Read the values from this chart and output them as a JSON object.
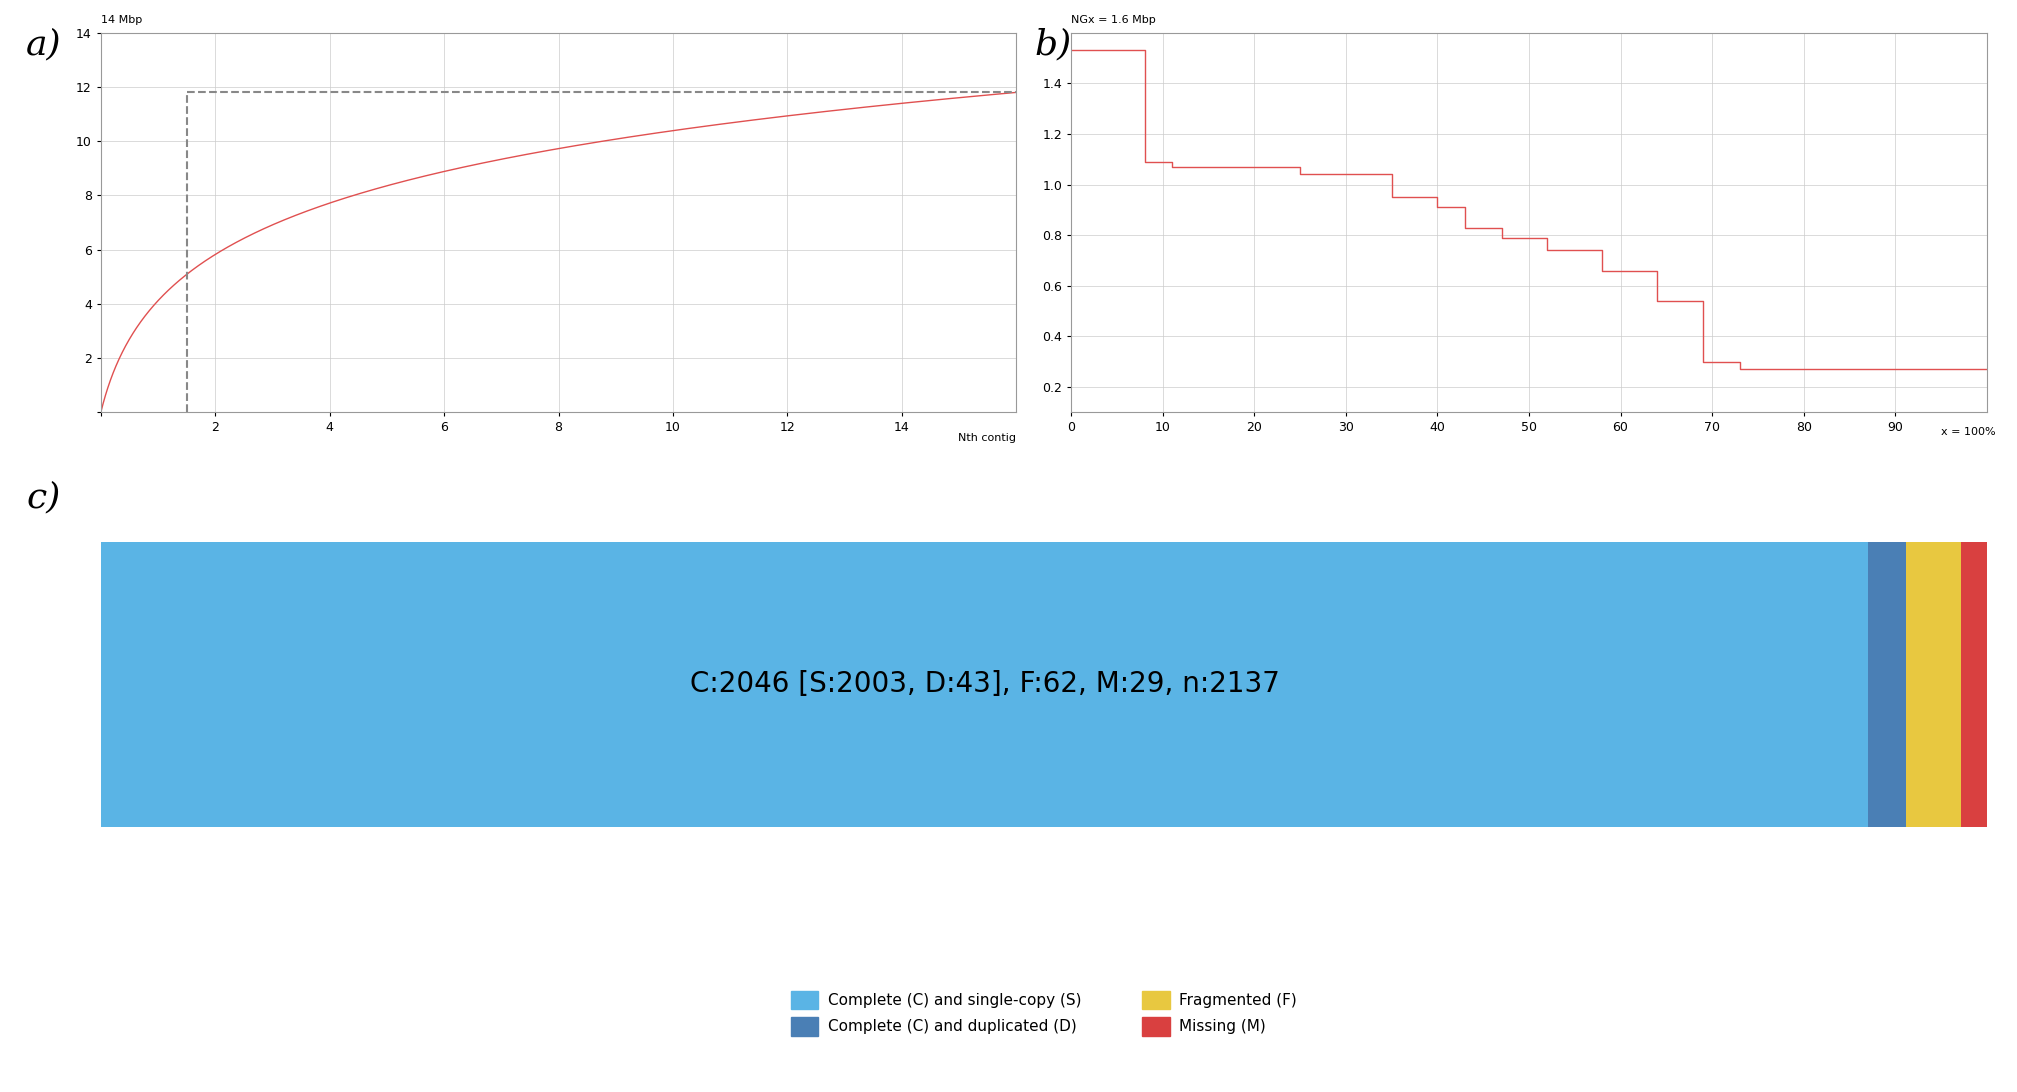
{
  "plot_a": {
    "ylabel": "14 Mbp",
    "xlabel": "Nth contig",
    "xlim": [
      0,
      16
    ],
    "ylim": [
      0,
      14
    ],
    "yticks": [
      0,
      2,
      4,
      6,
      8,
      10,
      12,
      14
    ],
    "xticks": [
      0,
      2,
      4,
      6,
      8,
      10,
      12,
      14
    ],
    "nx50_x": 1.5,
    "nx50_y": 11.8,
    "curve_slope": 0.82,
    "curve_color": "#e05050",
    "dashed_color": "#888888"
  },
  "plot_b": {
    "ylabel_top": "NGx = 1.6 Mbp",
    "xlim": [
      0,
      100
    ],
    "ylim": [
      0.1,
      1.6
    ],
    "yticks": [
      0.2,
      0.4,
      0.6,
      0.8,
      1.0,
      1.2,
      1.4
    ],
    "xticks": [
      0,
      10,
      20,
      30,
      40,
      50,
      60,
      70,
      80,
      90
    ],
    "xlabel_end": "x = 100%",
    "step_x": [
      0,
      8,
      8,
      11,
      11,
      25,
      25,
      35,
      35,
      40,
      40,
      43,
      43,
      47,
      47,
      52,
      52,
      58,
      58,
      64,
      64,
      69,
      69,
      73,
      73,
      78,
      78,
      83,
      83,
      87,
      87,
      91,
      91,
      95,
      95,
      100
    ],
    "step_y": [
      1.53,
      1.53,
      1.09,
      1.09,
      1.07,
      1.07,
      1.04,
      1.04,
      0.95,
      0.95,
      0.91,
      0.91,
      0.83,
      0.83,
      0.79,
      0.79,
      0.74,
      0.74,
      0.66,
      0.66,
      0.54,
      0.54,
      0.3,
      0.3,
      0.27,
      0.27,
      0.27,
      0.27,
      0.27,
      0.27,
      0.27,
      0.27,
      0.27,
      0.27,
      0.27,
      0.27
    ],
    "curve_color": "#e05050"
  },
  "plot_c": {
    "label": "C:2046 [S:2003, D:43], F:62, M:29, n:2137",
    "complete_single": 93.72,
    "complete_dup": 2.01,
    "fragmented": 2.9,
    "missing": 1.36,
    "colors": {
      "complete_single": "#5ab4e5",
      "complete_dup": "#4a7fb5",
      "fragmented": "#e8c840",
      "missing": "#d94040"
    },
    "legend_labels": {
      "complete_single": "Complete (C) and single-copy (S)",
      "complete_dup": "Complete (C) and duplicated (D)",
      "fragmented": "Fragmented (F)",
      "missing": "Missing (M)"
    }
  },
  "background_color": "#ffffff",
  "grid_color": "#cccccc",
  "label_fontsize": 26,
  "tick_fontsize": 9,
  "annotation_fontsize": 8
}
